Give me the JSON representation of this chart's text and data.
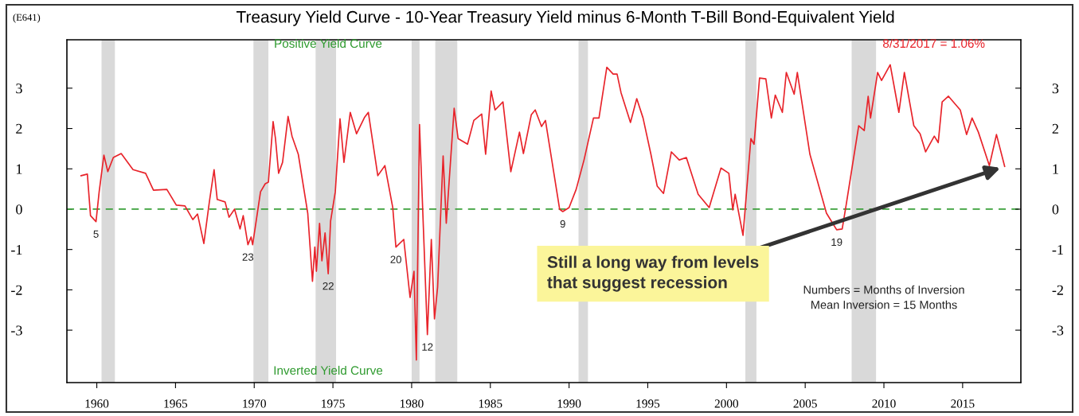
{
  "chart_data": {
    "type": "line",
    "title": "Treasury Yield Curve - 10-Year Treasury Yield minus 6-Month T-Bill Bond-Equivalent Yield",
    "subtitle": "(E641)",
    "series": [
      {
        "color": "#e8232a",
        "x": [
          1959.0,
          1959.4,
          1959.6,
          1959.95,
          1960.15,
          1960.45,
          1960.7,
          1961.05,
          1961.55,
          1962.3,
          1963.1,
          1963.6,
          1964.45,
          1965.05,
          1965.6,
          1966.1,
          1966.4,
          1966.8,
          1967.15,
          1967.45,
          1967.65,
          1968.15,
          1968.4,
          1968.75,
          1969.1,
          1969.3,
          1969.6,
          1969.8,
          1969.9,
          1970.4,
          1970.7,
          1970.9,
          1971.2,
          1971.35,
          1971.55,
          1971.8,
          1972.15,
          1972.4,
          1972.8,
          1973.4,
          1973.7,
          1973.85,
          1973.95,
          1974.15,
          1974.3,
          1974.5,
          1974.7,
          1974.85,
          1975.15,
          1975.45,
          1975.7,
          1976.1,
          1976.5,
          1977.0,
          1977.25,
          1977.85,
          1978.3,
          1978.8,
          1979.0,
          1979.5,
          1979.9,
          1980.15,
          1980.3,
          1980.5,
          1981.0,
          1981.25,
          1981.45,
          1981.65,
          1982.0,
          1982.2,
          1982.7,
          1982.95,
          1983.55,
          1983.95,
          1984.45,
          1984.7,
          1985.05,
          1985.3,
          1985.8,
          1986.3,
          1986.85,
          1987.1,
          1987.6,
          1987.85,
          1988.25,
          1988.5,
          1989.4,
          1989.6,
          1990.0,
          1990.45,
          1990.95,
          1991.55,
          1991.9,
          1992.4,
          1992.8,
          1993.05,
          1993.3,
          1993.9,
          1994.3,
          1994.7,
          1995.2,
          1995.6,
          1996.0,
          1996.5,
          1997.0,
          1997.45,
          1998.2,
          1998.9,
          1999.65,
          2000.15,
          2000.4,
          2000.55,
          2001.05,
          2001.55,
          2001.75,
          2002.1,
          2002.5,
          2002.85,
          2003.1,
          2003.55,
          2003.8,
          2004.3,
          2004.5,
          2005.3,
          2006.35,
          2007.0,
          2007.35,
          2007.6,
          2008.4,
          2008.75,
          2009.0,
          2009.15,
          2009.6,
          2009.85,
          2010.4,
          2010.95,
          2011.3,
          2011.9,
          2012.3,
          2012.65,
          2013.2,
          2013.45,
          2013.7,
          2014.1,
          2014.85,
          2015.25,
          2015.6,
          2016.0,
          2016.7,
          2017.15,
          2017.67
        ],
        "values": [
          0.83,
          0.87,
          -0.16,
          -0.31,
          0.43,
          1.34,
          0.93,
          1.28,
          1.38,
          0.98,
          0.89,
          0.47,
          0.49,
          0.1,
          0.08,
          -0.26,
          -0.12,
          -0.85,
          0.18,
          0.98,
          0.24,
          0.18,
          -0.2,
          0.0,
          -0.49,
          -0.16,
          -0.88,
          -0.69,
          -0.88,
          0.43,
          0.63,
          0.67,
          2.17,
          1.75,
          0.89,
          1.16,
          2.3,
          1.81,
          1.36,
          -0.1,
          -1.79,
          -0.94,
          -1.54,
          -0.35,
          -1.28,
          -0.59,
          -1.6,
          -0.3,
          0.43,
          2.24,
          1.16,
          2.4,
          1.87,
          2.27,
          2.4,
          0.83,
          1.08,
          0.04,
          -0.94,
          -0.75,
          -2.19,
          -1.54,
          -3.74,
          2.1,
          -3.11,
          -0.75,
          -2.72,
          -1.93,
          1.32,
          -0.35,
          2.5,
          1.75,
          1.61,
          2.2,
          2.36,
          1.36,
          2.93,
          2.46,
          2.66,
          0.93,
          1.91,
          1.38,
          2.34,
          2.46,
          2.05,
          2.2,
          0.0,
          -0.06,
          0.04,
          0.49,
          1.22,
          2.26,
          2.26,
          3.52,
          3.35,
          3.35,
          2.89,
          2.15,
          2.74,
          2.26,
          1.36,
          0.57,
          0.39,
          1.42,
          1.22,
          1.28,
          0.37,
          0.04,
          1.02,
          0.89,
          -0.02,
          0.37,
          -0.65,
          1.75,
          1.61,
          3.25,
          3.23,
          2.26,
          2.83,
          2.4,
          3.39,
          2.85,
          3.39,
          1.36,
          -0.1,
          -0.51,
          -0.49,
          0.1,
          2.07,
          1.95,
          2.8,
          2.26,
          3.39,
          3.19,
          3.58,
          2.4,
          3.39,
          2.07,
          1.87,
          1.42,
          1.81,
          1.65,
          2.66,
          2.8,
          2.46,
          1.85,
          2.26,
          1.91,
          1.08,
          1.85,
          1.06
        ]
      }
    ],
    "xlim": [
      1958.1,
      2018.7
    ],
    "xticks": [
      1960,
      1965,
      1970,
      1975,
      1980,
      1985,
      1990,
      1995,
      2000,
      2005,
      2010,
      2015
    ],
    "ylim": [
      -4.3,
      4.2
    ],
    "yticks": [
      -3,
      -2,
      -1,
      0,
      1,
      2,
      3
    ],
    "y2lim": [
      -4.3,
      4.2
    ],
    "y2ticks": [
      -3,
      -2,
      -1,
      0,
      1,
      2,
      3
    ],
    "ref_lines": [
      {
        "axis": "y",
        "value": 0,
        "color": "#3aa03a",
        "line_style": "dashed"
      }
    ],
    "bands": [
      {
        "axis": "x",
        "from": 1960.3,
        "to": 1961.15,
        "color": "#d9d9d9"
      },
      {
        "axis": "x",
        "from": 1969.95,
        "to": 1970.9,
        "color": "#d9d9d9"
      },
      {
        "axis": "x",
        "from": 1973.9,
        "to": 1975.2,
        "color": "#d9d9d9"
      },
      {
        "axis": "x",
        "from": 1980.0,
        "to": 1980.5,
        "color": "#d9d9d9"
      },
      {
        "axis": "x",
        "from": 1981.5,
        "to": 1982.9,
        "color": "#d9d9d9"
      },
      {
        "axis": "x",
        "from": 1990.6,
        "to": 1991.2,
        "color": "#d9d9d9"
      },
      {
        "axis": "x",
        "from": 2001.2,
        "to": 2001.9,
        "color": "#d9d9d9"
      },
      {
        "axis": "x",
        "from": 2007.95,
        "to": 2009.5,
        "color": "#d9d9d9"
      }
    ],
    "annotations": [
      "Positive Yield Curve",
      "Inverted Yield Curve",
      "8/31/2017 = 1.06%",
      "Numbers = Months of Inversion\nMean Inversion = 15 Months",
      "Still a long way from levels\nthat suggest recession",
      {
        "text": "5",
        "x": 1959.95,
        "y": -0.31
      },
      {
        "text": "23",
        "x": 1969.6,
        "y": -0.88
      },
      {
        "text": "22",
        "x": 1974.7,
        "y": -1.6
      },
      {
        "text": "20",
        "x": 1979.0,
        "y": -0.94
      },
      {
        "text": "12",
        "x": 1981.0,
        "y": -3.11
      },
      {
        "text": "9",
        "x": 1989.6,
        "y": -0.06
      },
      {
        "text": "19",
        "x": 2007.0,
        "y": -0.51
      }
    ],
    "grid": false,
    "legend": false,
    "marker": "none",
    "line_style": "solid"
  }
}
